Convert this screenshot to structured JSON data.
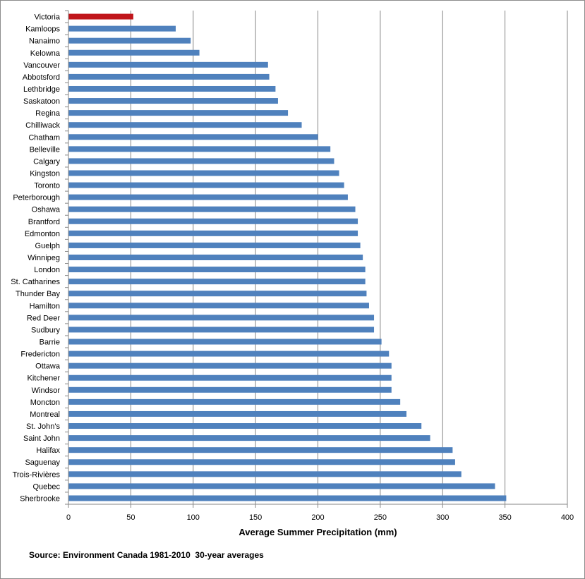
{
  "chart_data": {
    "type": "bar",
    "orientation": "horizontal",
    "categories": [
      "Victoria",
      "Kamloops",
      "Nanaimo",
      "Kelowna",
      "Vancouver",
      "Abbotsford",
      "Lethbridge",
      "Saskatoon",
      "Regina",
      "Chilliwack",
      "Chatham",
      "Belleville",
      "Calgary",
      "Kingston",
      "Toronto",
      "Peterborough",
      "Oshawa",
      "Brantford",
      "Edmonton",
      "Guelph",
      "Winnipeg",
      "London",
      "St. Catharines",
      "Thunder Bay",
      "Hamilton",
      "Red Deer",
      "Sudbury",
      "Barrie",
      "Fredericton",
      "Ottawa",
      "Kitchener",
      "Windsor",
      "Moncton",
      "Montreal",
      "St. John's",
      "Saint John",
      "Halifax",
      "Saguenay",
      "Trois-Rivières",
      "Quebec",
      "Sherbrooke"
    ],
    "values": [
      52,
      86,
      98,
      105,
      160,
      161,
      166,
      168,
      176,
      187,
      200,
      210,
      213,
      217,
      221,
      224,
      230,
      232,
      232,
      234,
      236,
      238,
      238,
      239,
      241,
      245,
      245,
      251,
      257,
      259,
      259,
      259,
      266,
      271,
      283,
      290,
      308,
      310,
      315,
      342,
      351
    ],
    "highlight": {
      "category": "Victoria",
      "color": "#c0151b"
    },
    "bar_color": "#4f81bd",
    "title": "",
    "xlabel": "Average Summer Precipitation (mm)",
    "ylabel": "",
    "xlim": [
      0,
      400
    ],
    "xticks": [
      0,
      50,
      100,
      150,
      200,
      250,
      300,
      350,
      400
    ],
    "grid": true,
    "legend": "none"
  },
  "source_note": "Source: Environment Canada 1981-2010  30-year averages"
}
